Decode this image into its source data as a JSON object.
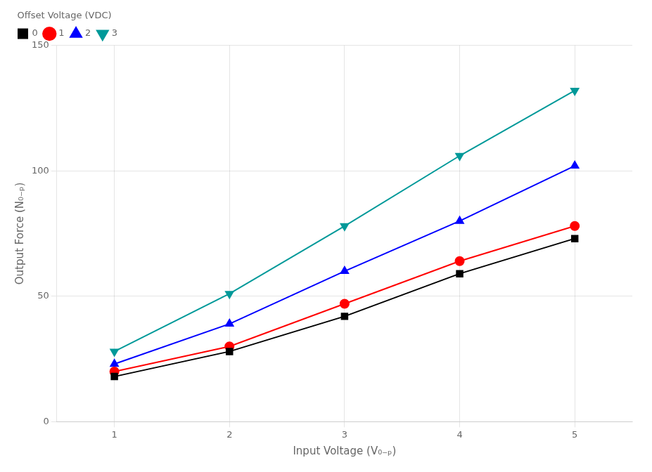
{
  "chart_data": {
    "type": "line",
    "x": [
      1,
      2,
      3,
      4,
      5
    ],
    "series": [
      {
        "name": "0",
        "color": "black",
        "marker": "square",
        "values": [
          18,
          28,
          42,
          59,
          73
        ]
      },
      {
        "name": "1",
        "color": "red",
        "marker": "circle",
        "values": [
          20,
          30,
          47,
          64,
          78
        ]
      },
      {
        "name": "2",
        "color": "blue",
        "marker": "triangle-up",
        "values": [
          23,
          39,
          60,
          80,
          102
        ]
      },
      {
        "name": "3",
        "color": "#009999",
        "marker": "triangle-down",
        "values": [
          28,
          51,
          78,
          106,
          132
        ]
      }
    ],
    "x_label": "Input Voltage (V₀₋ₚ)",
    "y_label": "Output Force (N₀₋ₚ)",
    "legend_title": "Offset Voltage (VDC)",
    "legend": "upper left",
    "xlim": [
      0.5,
      5.5
    ],
    "xticks": [
      1,
      2,
      3,
      4,
      5
    ],
    "ylim": [
      0,
      150
    ],
    "yticks": [
      0,
      50,
      100,
      150
    ],
    "grid": true
  }
}
